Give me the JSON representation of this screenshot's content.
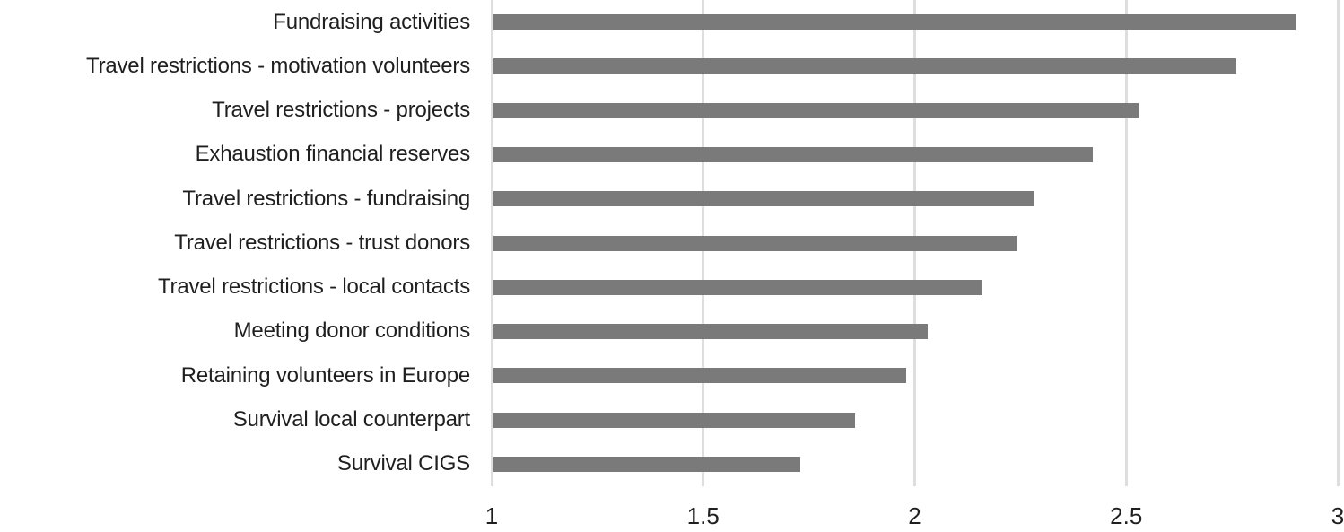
{
  "chart_data": {
    "type": "bar",
    "orientation": "horizontal",
    "title": "",
    "xlabel": "",
    "ylabel": "",
    "categories": [
      "Fundraising activities",
      "Travel restrictions - motivation volunteers",
      "Travel restrictions - projects",
      "Exhaustion financial reserves",
      "Travel restrictions - fundraising",
      "Travel restrictions - trust donors",
      "Travel restrictions - local contacts",
      "Meeting donor conditions",
      "Retaining volunteers in Europe",
      "Survival local counterpart",
      "Survival CIGS"
    ],
    "values": [
      2.9,
      2.76,
      2.53,
      2.42,
      2.28,
      2.24,
      2.16,
      2.03,
      1.98,
      1.86,
      1.73
    ],
    "xlim": [
      1,
      3
    ],
    "xticks": [
      1,
      1.5,
      2,
      2.5,
      3
    ],
    "xtick_labels": [
      "1",
      "1.5",
      "2",
      "2.5",
      "3"
    ],
    "grid": "vertical-major-only",
    "legend": "none",
    "colors": {
      "bar": "#7a7a7a",
      "gridline": "#dedede",
      "text": "#1f1f1f",
      "background": "#ffffff"
    }
  }
}
